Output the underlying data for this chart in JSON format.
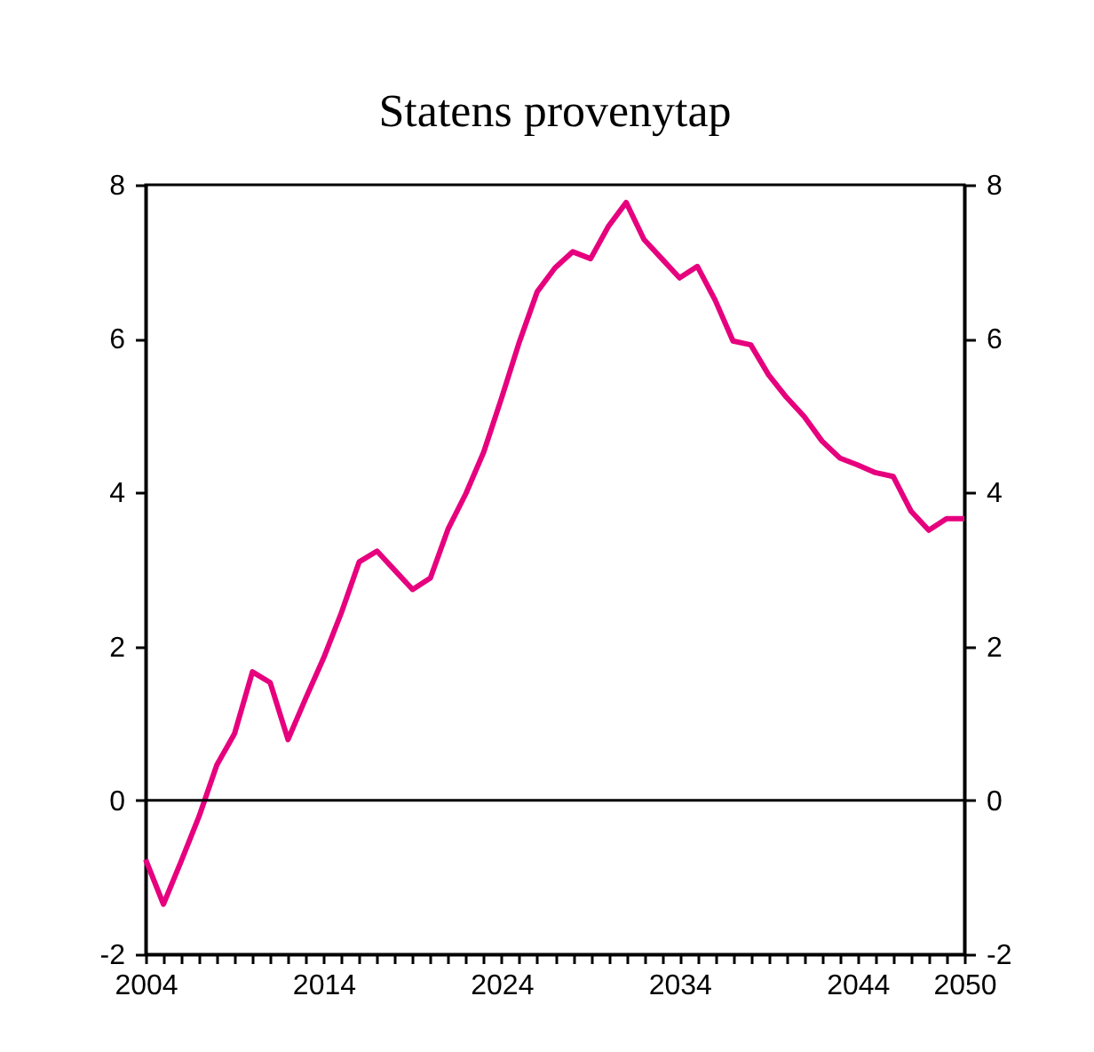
{
  "chart_data": {
    "type": "line",
    "title": "Statens provenytap",
    "x": [
      2004,
      2005,
      2006,
      2007,
      2008,
      2009,
      2010,
      2011,
      2012,
      2013,
      2014,
      2015,
      2016,
      2017,
      2018,
      2019,
      2020,
      2021,
      2022,
      2023,
      2024,
      2025,
      2026,
      2027,
      2028,
      2029,
      2030,
      2031,
      2032,
      2033,
      2034,
      2035,
      2036,
      2037,
      2038,
      2039,
      2040,
      2041,
      2042,
      2043,
      2044,
      2045,
      2046,
      2047,
      2048,
      2049,
      2050
    ],
    "series": [
      {
        "color": "#e6007e",
        "values": [
          -0.77,
          -1.35,
          -0.79,
          -0.21,
          0.46,
          0.87,
          1.67,
          1.53,
          0.79,
          1.33,
          1.85,
          2.44,
          3.1,
          3.24,
          2.99,
          2.74,
          2.89,
          3.53,
          3.99,
          4.53,
          5.23,
          5.96,
          6.61,
          6.92,
          7.13,
          7.04,
          7.46,
          7.77,
          7.29,
          7.04,
          6.79,
          6.94,
          6.5,
          5.97,
          5.92,
          5.53,
          5.24,
          4.99,
          4.67,
          4.45,
          4.36,
          4.26,
          4.21,
          3.76,
          3.51,
          3.66,
          3.66
        ]
      }
    ],
    "xlim": [
      2004,
      2050
    ],
    "xticks": [
      2004,
      {
        "value": 2005,
        "label": null
      },
      {
        "value": 2006,
        "label": null
      },
      {
        "value": 2007,
        "label": null
      },
      {
        "value": 2008,
        "label": null
      },
      {
        "value": 2009,
        "label": null
      },
      {
        "value": 2010,
        "label": null
      },
      {
        "value": 2011,
        "label": null
      },
      {
        "value": 2012,
        "label": null
      },
      {
        "value": 2013,
        "label": null
      },
      2014,
      {
        "value": 2015,
        "label": null
      },
      {
        "value": 2016,
        "label": null
      },
      {
        "value": 2017,
        "label": null
      },
      {
        "value": 2018,
        "label": null
      },
      {
        "value": 2019,
        "label": null
      },
      {
        "value": 2020,
        "label": null
      },
      {
        "value": 2021,
        "label": null
      },
      {
        "value": 2022,
        "label": null
      },
      {
        "value": 2023,
        "label": null
      },
      2024,
      {
        "value": 2025,
        "label": null
      },
      {
        "value": 2026,
        "label": null
      },
      {
        "value": 2027,
        "label": null
      },
      {
        "value": 2028,
        "label": null
      },
      {
        "value": 2029,
        "label": null
      },
      {
        "value": 2030,
        "label": null
      },
      {
        "value": 2031,
        "label": null
      },
      {
        "value": 2032,
        "label": null
      },
      {
        "value": 2033,
        "label": null
      },
      2034,
      {
        "value": 2035,
        "label": null
      },
      {
        "value": 2036,
        "label": null
      },
      {
        "value": 2037,
        "label": null
      },
      {
        "value": 2038,
        "label": null
      },
      {
        "value": 2039,
        "label": null
      },
      {
        "value": 2040,
        "label": null
      },
      {
        "value": 2041,
        "label": null
      },
      {
        "value": 2042,
        "label": null
      },
      {
        "value": 2043,
        "label": null
      },
      2044,
      {
        "value": 2045,
        "label": null
      },
      {
        "value": 2046,
        "label": null
      },
      {
        "value": 2047,
        "label": null
      },
      {
        "value": 2048,
        "label": null
      },
      {
        "value": 2049,
        "label": null
      },
      2050
    ],
    "ylim": [
      -2,
      8
    ],
    "yticks": [
      -2,
      0,
      2,
      4,
      6,
      8
    ],
    "y2lim": [
      -2,
      8
    ],
    "y2ticks": [
      -2,
      0,
      2,
      4,
      6,
      8
    ],
    "ref_lines": [
      {
        "axis": "y",
        "value": 0,
        "color": "#000000"
      }
    ],
    "grid": false,
    "marker": "none",
    "line_style": "solid"
  }
}
